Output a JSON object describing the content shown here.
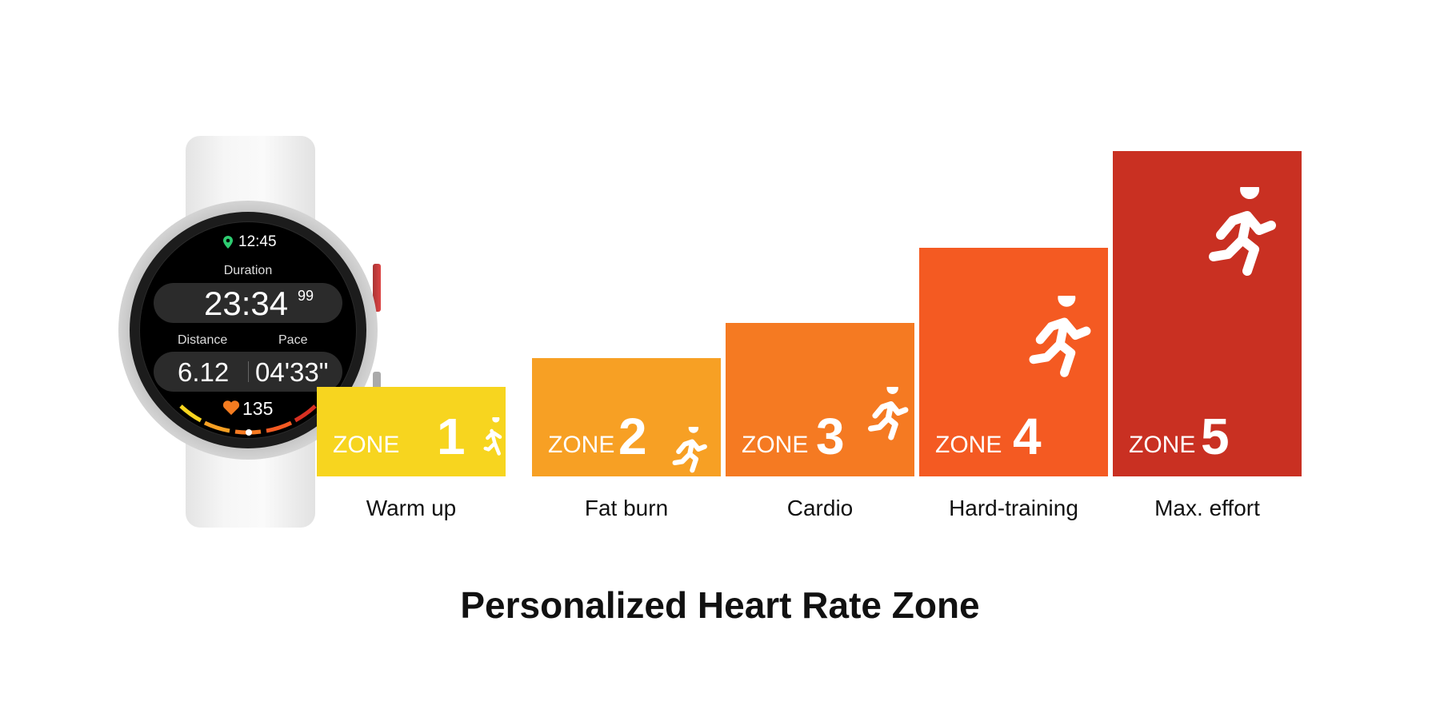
{
  "watch": {
    "time": "12:45",
    "duration_label": "Duration",
    "duration_value": "23:34",
    "duration_hundredths": "99",
    "distance_label": "Distance",
    "pace_label": "Pace",
    "distance_value": "6.12",
    "pace_value": "04'33\"",
    "heart_rate": "135",
    "location_icon_color": "#2ecc71",
    "heart_icon_color": "#f47c20"
  },
  "zones": [
    {
      "word": "ZONE",
      "number": "1",
      "label": "Warm up",
      "color": "#F7D51F",
      "icon": "walker-icon"
    },
    {
      "word": "ZONE",
      "number": "2",
      "label": "Fat burn",
      "color": "#F7A024",
      "icon": "runner-icon"
    },
    {
      "word": "ZONE",
      "number": "3",
      "label": "Cardio",
      "color": "#F57A22",
      "icon": "runner-icon"
    },
    {
      "word": "ZONE",
      "number": "4",
      "label": "Hard-training",
      "color": "#F45A22",
      "icon": "runner-icon"
    },
    {
      "word": "ZONE",
      "number": "5",
      "label": "Max. effort",
      "color": "#C93022",
      "icon": "sprinter-icon"
    }
  ],
  "title": "Personalized Heart Rate Zone"
}
